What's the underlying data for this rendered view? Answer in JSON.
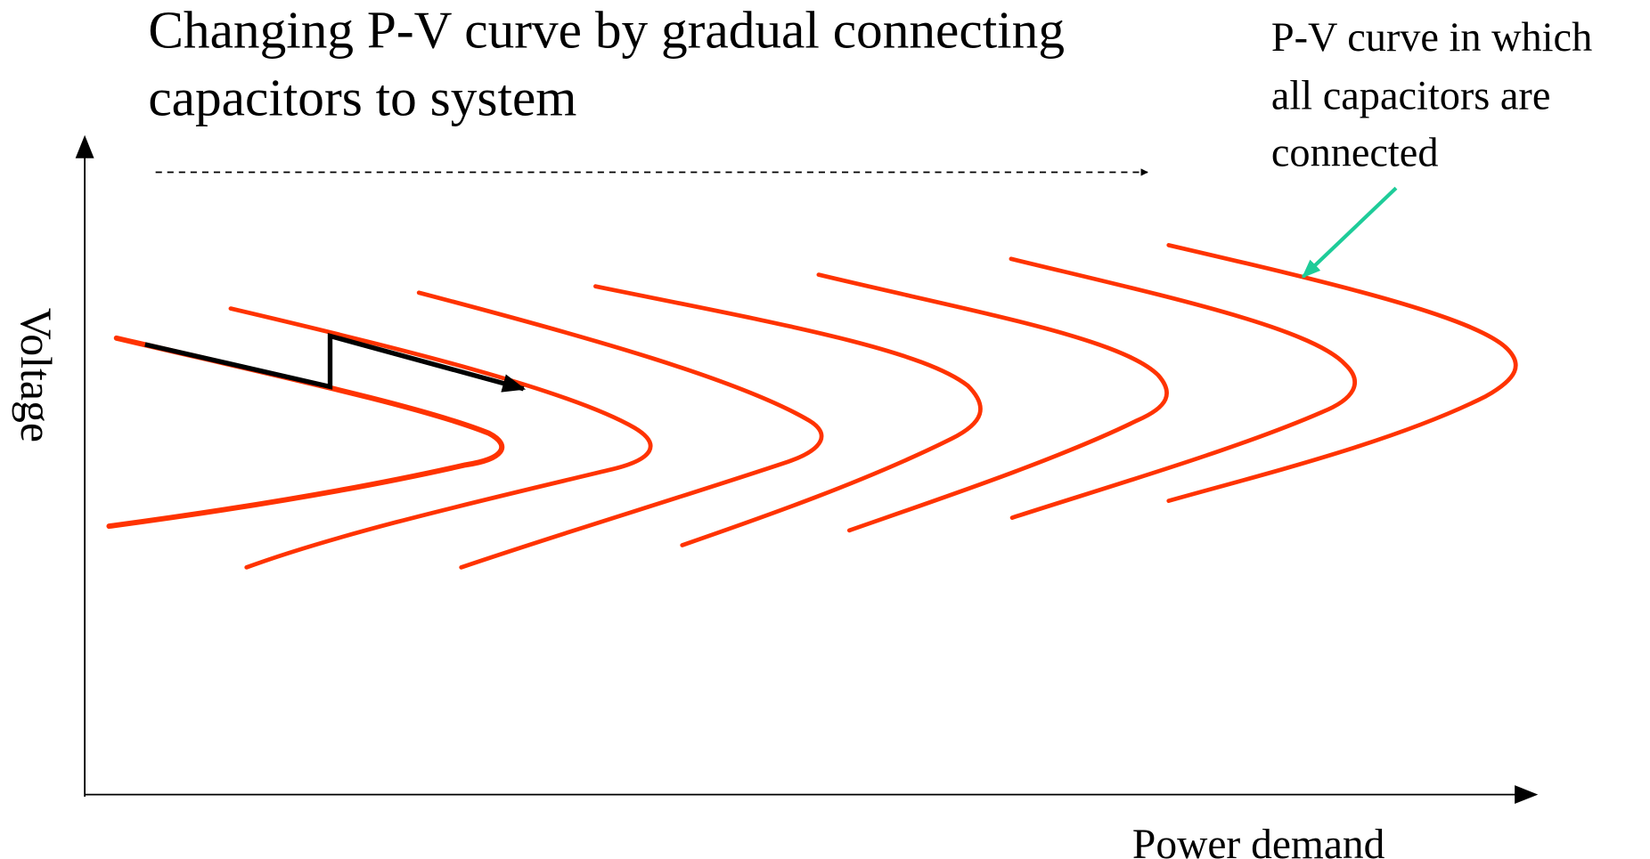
{
  "title": [
    "Changing P-V curve by gradual connecting",
    "capacitors to system"
  ],
  "annotation": [
    "P-V curve in which",
    "all capacitors are",
    "connected"
  ],
  "axes": {
    "y_label": "Voltage",
    "x_label": "Power demand"
  }
}
